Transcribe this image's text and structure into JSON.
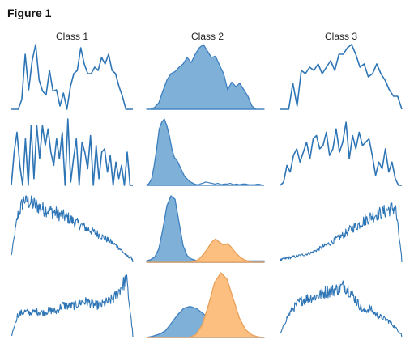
{
  "figure": {
    "title": "Figure 1"
  },
  "columns": [
    "Class 1",
    "Class 2",
    "Class 3"
  ],
  "colors": {
    "line": "#2e75b6",
    "fill": "#7fb0d8",
    "fill_stroke": "#3d7fbf",
    "orange": "#fdbf7f",
    "orange_stroke": "#e8a05a"
  },
  "chart_data": [
    {
      "type": "line",
      "row": 1,
      "column": "Class 1",
      "y": [
        0,
        0,
        0,
        0.15,
        0.85,
        0.3,
        0.75,
        1,
        0.45,
        0.28,
        0.22,
        0.6,
        0.28,
        0.3,
        0.05,
        0.25,
        0,
        0.35,
        0.55,
        0.6,
        0.95,
        0.7,
        0.55,
        0.55,
        0.65,
        0.6,
        0.8,
        0.7,
        0.85,
        0.6,
        0.55,
        0.35,
        0.2,
        0,
        0,
        0
      ]
    },
    {
      "type": "area",
      "row": 1,
      "column": "Class 2",
      "series": [
        {
          "color": "blue",
          "y": [
            0,
            0,
            0.03,
            0.1,
            0.28,
            0.45,
            0.55,
            0.58,
            0.65,
            0.7,
            0.8,
            0.72,
            0.85,
            0.95,
            1,
            0.9,
            0.8,
            0.82,
            0.68,
            0.55,
            0.3,
            0.42,
            0.35,
            0.4,
            0.3,
            0.2,
            0.05,
            0,
            0,
            0
          ]
        }
      ]
    },
    {
      "type": "line",
      "row": 1,
      "column": "Class 3",
      "y": [
        0,
        0,
        0,
        0.4,
        0.05,
        0.6,
        0.55,
        0.65,
        0.6,
        0.7,
        0.55,
        0.65,
        0.75,
        0.6,
        0.85,
        0.85,
        0.95,
        1,
        0.85,
        0.65,
        0.7,
        0.5,
        0.55,
        0.7,
        0.55,
        0.45,
        0.3,
        0.2,
        0.2,
        0
      ]
    },
    {
      "type": "line",
      "row": 2,
      "column": "Class 1",
      "y": [
        0,
        0.5,
        0.8,
        0.3,
        0,
        0.7,
        0,
        0.9,
        0.1,
        0.9,
        0.4,
        0.9,
        0.6,
        0.85,
        0.5,
        0.3,
        0.7,
        0.4,
        0.8,
        0,
        1,
        0.05,
        0.4,
        0.7,
        0,
        0.65,
        0.5,
        0.25,
        0.75,
        0,
        0.6,
        0.1,
        0.5,
        0.55,
        0.2,
        0.45,
        0,
        0.35,
        0.1,
        0.3,
        0,
        0.5,
        0,
        0
      ]
    },
    {
      "type": "area",
      "row": 2,
      "column": "Class 2",
      "series": [
        {
          "color": "blue",
          "y": [
            0,
            0.03,
            0.1,
            0.3,
            0.55,
            0.85,
            0.95,
            1,
            0.9,
            0.75,
            0.55,
            0.42,
            0.38,
            0.3,
            0.22,
            0.14,
            0.1,
            0.06,
            0.04,
            0.02,
            0.01,
            0.01
          ],
          "x_extent": 0.45
        }
      ],
      "tail": [
        0.02,
        0.03,
        0.05,
        0.04,
        0.03,
        0.02,
        0.03,
        0.01,
        0.02,
        0.02,
        0.03,
        0.01,
        0.02,
        0.01,
        0.02,
        0.02,
        0.01,
        0.01,
        0.01,
        0.02,
        0.01,
        0
      ]
    },
    {
      "type": "line",
      "row": 2,
      "column": "Class 3",
      "y": [
        0,
        0.05,
        0.3,
        0.2,
        0.45,
        0.55,
        0.35,
        0.5,
        0.65,
        0.4,
        0.7,
        0.75,
        0.55,
        0.6,
        0.8,
        0.45,
        0.55,
        0.85,
        0.5,
        0.65,
        0.95,
        0.4,
        0.75,
        0.55,
        0.8,
        0.6,
        0.65,
        0.7,
        0.45,
        0.15,
        0.35,
        0.25,
        0.55,
        0.2,
        0.35,
        0.1,
        0,
        0
      ]
    },
    {
      "type": "line",
      "row": 3,
      "column": "Class 1",
      "noisy": true,
      "envelope": [
        0.1,
        0.7,
        0.95,
        0.9,
        0.85,
        0.8,
        0.78,
        0.74,
        0.7,
        0.66,
        0.6,
        0.55,
        0.5,
        0.45,
        0.4,
        0.34,
        0.28,
        0.2,
        0.1,
        0.05
      ]
    },
    {
      "type": "area",
      "row": 3,
      "column": "Class 2",
      "series": [
        {
          "color": "blue",
          "y": [
            0.02,
            0.04,
            0.08,
            0.2,
            0.5,
            0.85,
            1,
            0.95,
            0.6,
            0.25,
            0.1,
            0.05,
            0.03,
            0.02,
            0.02,
            0.02,
            0.02,
            0.02,
            0.02,
            0.02,
            0.02,
            0.02,
            0.02,
            0.02,
            0.02,
            0.02,
            0.02,
            0.02,
            0.02,
            0.02
          ]
        },
        {
          "color": "orange",
          "y": [
            0,
            0,
            0,
            0,
            0,
            0,
            0,
            0,
            0,
            0,
            0,
            0,
            0.02,
            0.05,
            0.12,
            0.2,
            0.3,
            0.35,
            0.3,
            0.26,
            0.28,
            0.22,
            0.14,
            0.08,
            0.04,
            0.02,
            0,
            0,
            0,
            0
          ]
        }
      ]
    },
    {
      "type": "line",
      "row": 3,
      "column": "Class 3",
      "noisy": true,
      "envelope": [
        0.03,
        0.06,
        0.08,
        0.1,
        0.12,
        0.15,
        0.2,
        0.25,
        0.3,
        0.36,
        0.42,
        0.5,
        0.55,
        0.62,
        0.68,
        0.72,
        0.75,
        0.8,
        0.82,
        0.05
      ]
    },
    {
      "type": "line",
      "row": 4,
      "column": "Class 1",
      "noisy": true,
      "envelope": [
        0.02,
        0.35,
        0.4,
        0.38,
        0.4,
        0.38,
        0.42,
        0.4,
        0.5,
        0.48,
        0.5,
        0.55,
        0.55,
        0.5,
        0.5,
        0.55,
        0.6,
        0.75,
        0.9,
        0.05
      ]
    },
    {
      "type": "area",
      "row": 4,
      "column": "Class 2",
      "series": [
        {
          "color": "blue",
          "y": [
            0,
            0.02,
            0.05,
            0.1,
            0.22,
            0.35,
            0.45,
            0.48,
            0.45,
            0.38,
            0.3,
            0.22,
            0.14,
            0.08,
            0.04,
            0.02,
            0.01,
            0,
            0,
            0
          ]
        },
        {
          "color": "orange",
          "y": [
            0,
            0,
            0,
            0,
            0,
            0,
            0,
            0,
            0.05,
            0.2,
            0.5,
            0.85,
            1,
            0.9,
            0.6,
            0.3,
            0.12,
            0.04,
            0.01,
            0
          ]
        }
      ]
    },
    {
      "type": "line",
      "row": 4,
      "column": "Class 3",
      "noisy": true,
      "envelope": [
        0.05,
        0.3,
        0.45,
        0.55,
        0.6,
        0.62,
        0.65,
        0.7,
        0.72,
        0.75,
        0.8,
        0.7,
        0.55,
        0.4,
        0.45,
        0.35,
        0.3,
        0.25,
        0.15,
        0.05
      ]
    }
  ]
}
